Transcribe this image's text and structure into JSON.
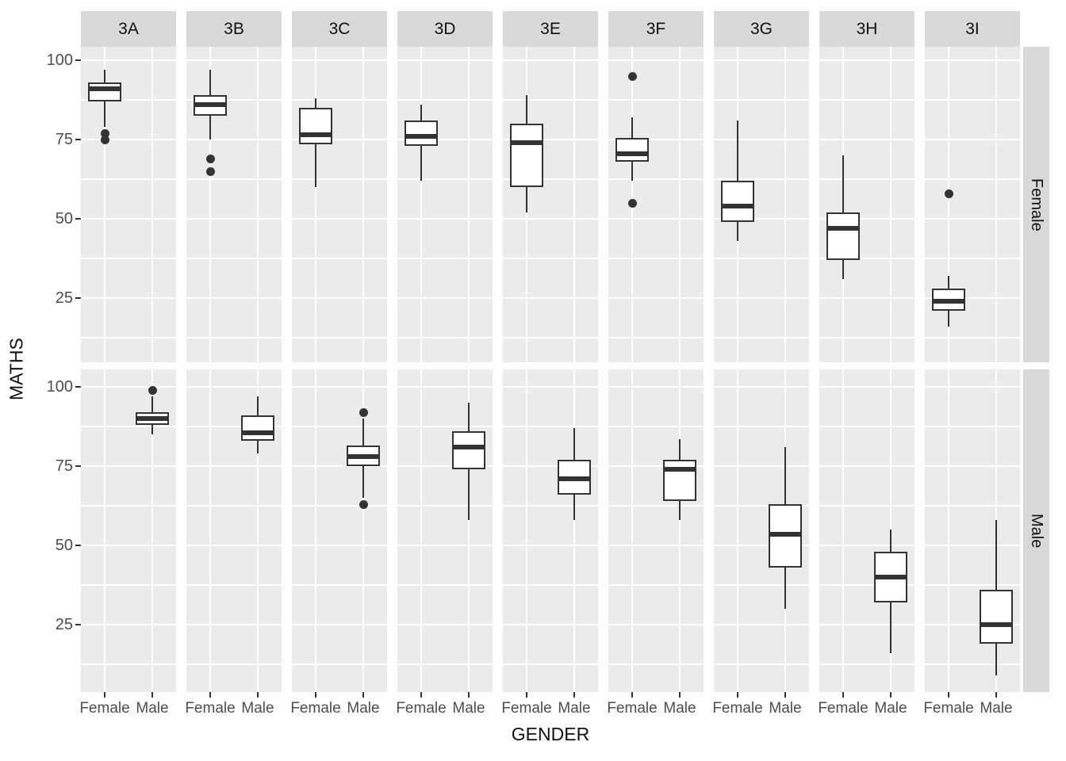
{
  "figure": {
    "ylabel": "MATHS",
    "xlabel": "GENDER"
  },
  "chart_data": {
    "type": "boxplot",
    "title": "",
    "xlabel": "GENDER",
    "ylabel": "MATHS",
    "facet_rows": [
      "Female",
      "Male"
    ],
    "facet_cols": [
      "3A",
      "3B",
      "3C",
      "3D",
      "3E",
      "3F",
      "3G",
      "3H",
      "3I"
    ],
    "x_categories": [
      "Female",
      "Male"
    ],
    "y_major_ticks": [
      100,
      75,
      50,
      25
    ],
    "y_minor_gridlines": [
      87.5,
      62.5,
      37.5,
      12.5
    ],
    "ylim": [
      4,
      105
    ],
    "grid": true,
    "legend": "none",
    "boxes": [
      {
        "facet_row": "Female",
        "facet_col": "3A",
        "x": "Female",
        "whisker_low": 79,
        "q1": 87,
        "median": 91,
        "q3": 93,
        "whisker_high": 97,
        "outliers": [
          77,
          75
        ]
      },
      {
        "facet_row": "Female",
        "facet_col": "3B",
        "x": "Female",
        "whisker_low": 75,
        "q1": 82.5,
        "median": 86,
        "q3": 89,
        "whisker_high": 97,
        "outliers": [
          69,
          65
        ]
      },
      {
        "facet_row": "Female",
        "facet_col": "3C",
        "x": "Female",
        "whisker_low": 60,
        "q1": 73.5,
        "median": 76.5,
        "q3": 85,
        "whisker_high": 88,
        "outliers": []
      },
      {
        "facet_row": "Female",
        "facet_col": "3D",
        "x": "Female",
        "whisker_low": 62,
        "q1": 73,
        "median": 76,
        "q3": 81,
        "whisker_high": 86,
        "outliers": []
      },
      {
        "facet_row": "Female",
        "facet_col": "3E",
        "x": "Female",
        "whisker_low": 52,
        "q1": 60,
        "median": 74,
        "q3": 80,
        "whisker_high": 89,
        "outliers": []
      },
      {
        "facet_row": "Female",
        "facet_col": "3F",
        "x": "Female",
        "whisker_low": 62,
        "q1": 68,
        "median": 70.5,
        "q3": 75.5,
        "whisker_high": 82,
        "outliers": [
          95,
          55
        ]
      },
      {
        "facet_row": "Female",
        "facet_col": "3G",
        "x": "Female",
        "whisker_low": 43,
        "q1": 49,
        "median": 54,
        "q3": 62,
        "whisker_high": 81,
        "outliers": []
      },
      {
        "facet_row": "Female",
        "facet_col": "3H",
        "x": "Female",
        "whisker_low": 31,
        "q1": 37,
        "median": 47,
        "q3": 52,
        "whisker_high": 70,
        "outliers": []
      },
      {
        "facet_row": "Female",
        "facet_col": "3I",
        "x": "Female",
        "whisker_low": 16,
        "q1": 21,
        "median": 24,
        "q3": 28,
        "whisker_high": 32,
        "outliers": [
          58
        ]
      },
      {
        "facet_row": "Male",
        "facet_col": "3A",
        "x": "Male",
        "whisker_low": 85,
        "q1": 88,
        "median": 90,
        "q3": 92,
        "whisker_high": 97,
        "outliers": [
          99
        ]
      },
      {
        "facet_row": "Male",
        "facet_col": "3B",
        "x": "Male",
        "whisker_low": 79,
        "q1": 83,
        "median": 85.5,
        "q3": 91,
        "whisker_high": 97,
        "outliers": []
      },
      {
        "facet_row": "Male",
        "facet_col": "3C",
        "x": "Male",
        "whisker_low": 65,
        "q1": 75,
        "median": 78,
        "q3": 81.5,
        "whisker_high": 90,
        "outliers": [
          92,
          63
        ]
      },
      {
        "facet_row": "Male",
        "facet_col": "3D",
        "x": "Male",
        "whisker_low": 58,
        "q1": 74,
        "median": 81,
        "q3": 86,
        "whisker_high": 95,
        "outliers": []
      },
      {
        "facet_row": "Male",
        "facet_col": "3E",
        "x": "Male",
        "whisker_low": 58,
        "q1": 66,
        "median": 71,
        "q3": 77,
        "whisker_high": 87,
        "outliers": []
      },
      {
        "facet_row": "Male",
        "facet_col": "3F",
        "x": "Male",
        "whisker_low": 58,
        "q1": 64,
        "median": 74,
        "q3": 77,
        "whisker_high": 83.5,
        "outliers": []
      },
      {
        "facet_row": "Male",
        "facet_col": "3G",
        "x": "Male",
        "whisker_low": 30,
        "q1": 43,
        "median": 53.5,
        "q3": 63,
        "whisker_high": 81,
        "outliers": []
      },
      {
        "facet_row": "Male",
        "facet_col": "3H",
        "x": "Male",
        "whisker_low": 16,
        "q1": 32,
        "median": 40,
        "q3": 48,
        "whisker_high": 55,
        "outliers": []
      },
      {
        "facet_row": "Male",
        "facet_col": "3I",
        "x": "Male",
        "whisker_low": 9,
        "q1": 19,
        "median": 25,
        "q3": 36,
        "whisker_high": 58,
        "outliers": []
      }
    ],
    "colors": {
      "panel_bg": "#EBEBEB",
      "strip_bg": "#D9D9D9",
      "gridline": "#FFFFFF",
      "box_stroke": "#333333",
      "box_fill": "#FFFFFF",
      "axis_text": "#4D4D4D",
      "title_text": "#111111"
    }
  }
}
